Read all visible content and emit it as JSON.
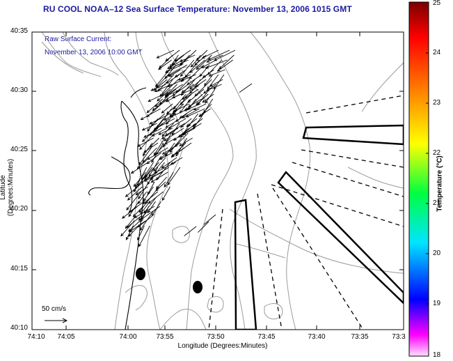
{
  "title": "RU COOL  NOAA–12  Sea Surface Temperature:  November 13, 2006 1015 GMT",
  "annotation": {
    "line1": "Raw Surface Current:",
    "line2": "November 13, 2006 10:00 GMT"
  },
  "axes": {
    "xlabel": "Longitude (Degrees:Minutes)",
    "ylabel": "Latitude (Degrees:Minutes)",
    "xticks": [
      "74:10",
      "74:05",
      "74:00",
      "73:55",
      "73:50",
      "73:45",
      "73:40",
      "73:35",
      "73:3"
    ],
    "yticks": [
      "40:35",
      "40:30",
      "40:25",
      "40:20",
      "40:15",
      "40:10"
    ]
  },
  "colorbar": {
    "label": "Temperature (°C)",
    "ticks": [
      "25",
      "24",
      "23",
      "22",
      "21",
      "20",
      "19",
      "18"
    ],
    "range": [
      18,
      25
    ],
    "colors": [
      "#ff00ff",
      "#0000ff",
      "#00ffff",
      "#00ff00",
      "#ffff00",
      "#ff7f00",
      "#ff0000",
      "#8b0000"
    ]
  },
  "scale": {
    "label": "50 cm/s"
  },
  "colors": {
    "title_text": "#1a1a9e",
    "bathymetry": "#999999",
    "coast": "#000000"
  }
}
